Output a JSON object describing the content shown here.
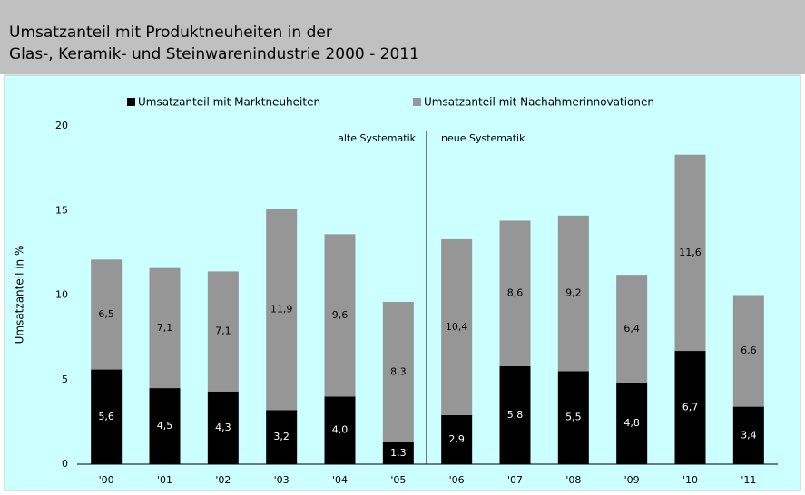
{
  "chart_data": {
    "type": "stacked_bar",
    "title": [
      "Umsatzanteil mit Produktneuheiten in der",
      "Glas-, Keramik- und Steinwarenindustrie 2000 - 2011"
    ],
    "ylabel": "Umsatzanteil in %",
    "categories": [
      "'00",
      "'01",
      "'02",
      "'03",
      "'04",
      "'05",
      "'06",
      "'07",
      "'08",
      "'09",
      "'10",
      "'11"
    ],
    "series": [
      {
        "name": "Umsatzanteil mit Marktneuheiten",
        "color": "#000000",
        "values": [
          5.6,
          4.5,
          4.3,
          3.2,
          4.0,
          1.3,
          2.9,
          5.8,
          5.5,
          4.8,
          6.7,
          3.4
        ],
        "value_labels": [
          "5,6",
          "4,5",
          "4,3",
          "3,2",
          "4,0",
          "1,3",
          "2,9",
          "5,8",
          "5,5",
          "4,8",
          "6,7",
          "3,4"
        ]
      },
      {
        "name": "Umsatzanteil mit Nachahmerinnovationen",
        "color": "#969696",
        "values": [
          6.5,
          7.1,
          7.1,
          11.9,
          9.6,
          8.3,
          10.4,
          8.6,
          9.2,
          6.4,
          11.6,
          6.6
        ],
        "value_labels": [
          "6,5",
          "7,1",
          "7,1",
          "11,9",
          "9,6",
          "8,3",
          "10,4",
          "8,6",
          "9,2",
          "6,4",
          "11,6",
          "6,6"
        ]
      }
    ],
    "annotations": [
      "alte Systematik",
      "neue Systematik"
    ],
    "ylim": [
      0,
      20
    ],
    "yticks": [
      0,
      5,
      10,
      15,
      20
    ],
    "grid": false
  }
}
